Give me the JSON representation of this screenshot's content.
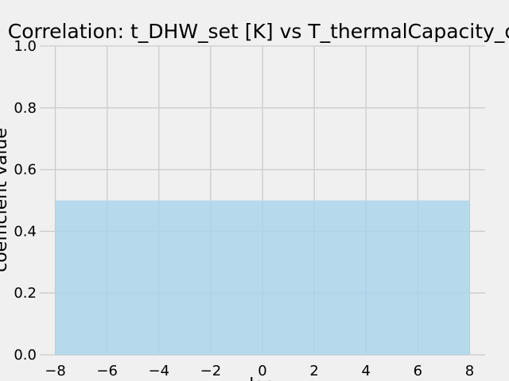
{
  "chart_data": {
    "type": "area",
    "title": "Correlation: t_DHW_set [K] vs T_thermalCapacity_d",
    "xlabel": "lag",
    "ylabel": "coefficient value",
    "xlim": [
      -8.6,
      8.6
    ],
    "ylim": [
      0,
      1
    ],
    "grid": true,
    "x_ticks": [
      -8,
      -6,
      -4,
      -2,
      0,
      2,
      4,
      6,
      8
    ],
    "x_tick_labels": [
      "−8",
      "−6",
      "−4",
      "−2",
      "0",
      "2",
      "4",
      "6",
      "8"
    ],
    "y_ticks": [
      0,
      0.2,
      0.4,
      0.6,
      0.8,
      1.0
    ],
    "y_tick_labels": [
      "0.0",
      "0.2",
      "0.4",
      "0.6",
      "0.8",
      "1.0"
    ],
    "series": [
      {
        "x": [
          -8,
          8
        ],
        "y": [
          0.5,
          0.5
        ]
      }
    ],
    "colors": {
      "fill": "#a9d3ea",
      "grid": "#cbcbcb",
      "background": "#f0f0f0"
    }
  }
}
